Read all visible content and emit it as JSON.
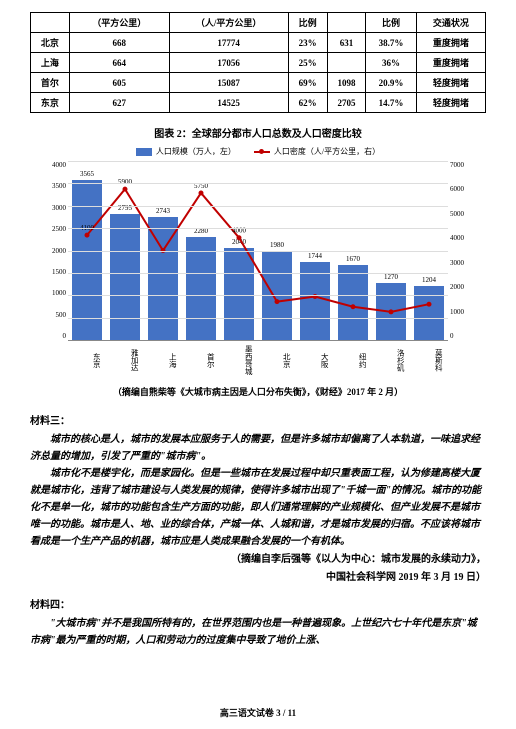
{
  "table": {
    "headers": [
      "",
      "（平方公里）",
      "（人/平方公里）",
      "比例",
      "",
      "比例",
      "交通状况"
    ],
    "rows": [
      [
        "北京",
        "668",
        "17774",
        "23%",
        "631",
        "38.7%",
        "重度拥堵"
      ],
      [
        "上海",
        "664",
        "17056",
        "25%",
        "",
        "36%",
        "重度拥堵"
      ],
      [
        "首尔",
        "605",
        "15087",
        "69%",
        "1098",
        "20.9%",
        "轻度拥堵"
      ],
      [
        "东京",
        "627",
        "14525",
        "62%",
        "2705",
        "14.7%",
        "轻度拥堵"
      ]
    ]
  },
  "chart": {
    "title": "图表 2：全球部分都市人口总数及人口密度比较",
    "legend_bar": "人口规模（万人，左）",
    "legend_line": "人口密度（人/平方公里，右）",
    "bar_color": "#4472c4",
    "line_color": "#c00000",
    "grid_color": "#dddddd",
    "y_left_max": 4000,
    "y_left_step": 500,
    "y_right_max": 7000,
    "y_right_step": 1000,
    "categories": [
      "东京",
      "雅加达",
      "上海",
      "首尔",
      "墨西哥城",
      "北京",
      "大阪",
      "纽约",
      "洛杉矶",
      "莫斯科"
    ],
    "bar_values": [
      3565,
      2795,
      2743,
      2280,
      2040,
      1980,
      1744,
      1670,
      1270,
      1204
    ],
    "bar_labels": [
      "3565",
      "2795",
      "2743",
      "2280",
      "2040",
      "1980",
      "1744",
      "1670",
      "1270",
      "1204"
    ],
    "line_values": [
      4100,
      5900,
      3500,
      5750,
      4000,
      1500,
      1700,
      1300,
      1100,
      1400
    ],
    "line_labels": [
      "4100",
      "5900",
      "",
      "5750",
      "4000",
      "",
      "",
      "",
      "",
      ""
    ]
  },
  "source1": "（摘编自熊柴等《大城市病主因是人口分布失衡》，《财经》2017 年 2 月）",
  "material3": {
    "heading": "材料三：",
    "para1": "城市的核心是人，城市的发展本应服务于人的需要，但是许多城市却偏离了人本轨道，一味追求经济总量的增加，引发了严重的\"城市病\"。",
    "para2": "城市化不是楼宇化，而是家园化。但是一些城市在发展过程中却只重表面工程，认为修建高楼大厦就是城市化，违背了城市建设与人类发展的规律，使得许多城市出现了\"千城一面\"的情况。城市的功能化不是单一化，城市的功能包含生产方面的功能，即人们通常理解的产业规模化、但产业发展不是城市唯一的功能。城市是人、地、业的综合体，产城一体、人城和谐，才是城市发展的归宿。不应该将城市看成是一个生产产品的机器，城市应是人类成果融合发展的一个有机体。",
    "attrib1": "（摘编自李后强等《以人为中心：城市发展的永续动力》，",
    "attrib2": "中国社会科学网 2019 年 3 月 19 日）"
  },
  "material4": {
    "heading": "材料四：",
    "para1": "\"大城市病\"并不是我国所特有的，在世界范围内也是一种普遍现象。上世纪六七十年代是东京\"城市病\"最为严重的时期，人口和劳动力的过度集中导致了地价上涨、"
  },
  "footer": "高三语文试卷  3 / 11"
}
